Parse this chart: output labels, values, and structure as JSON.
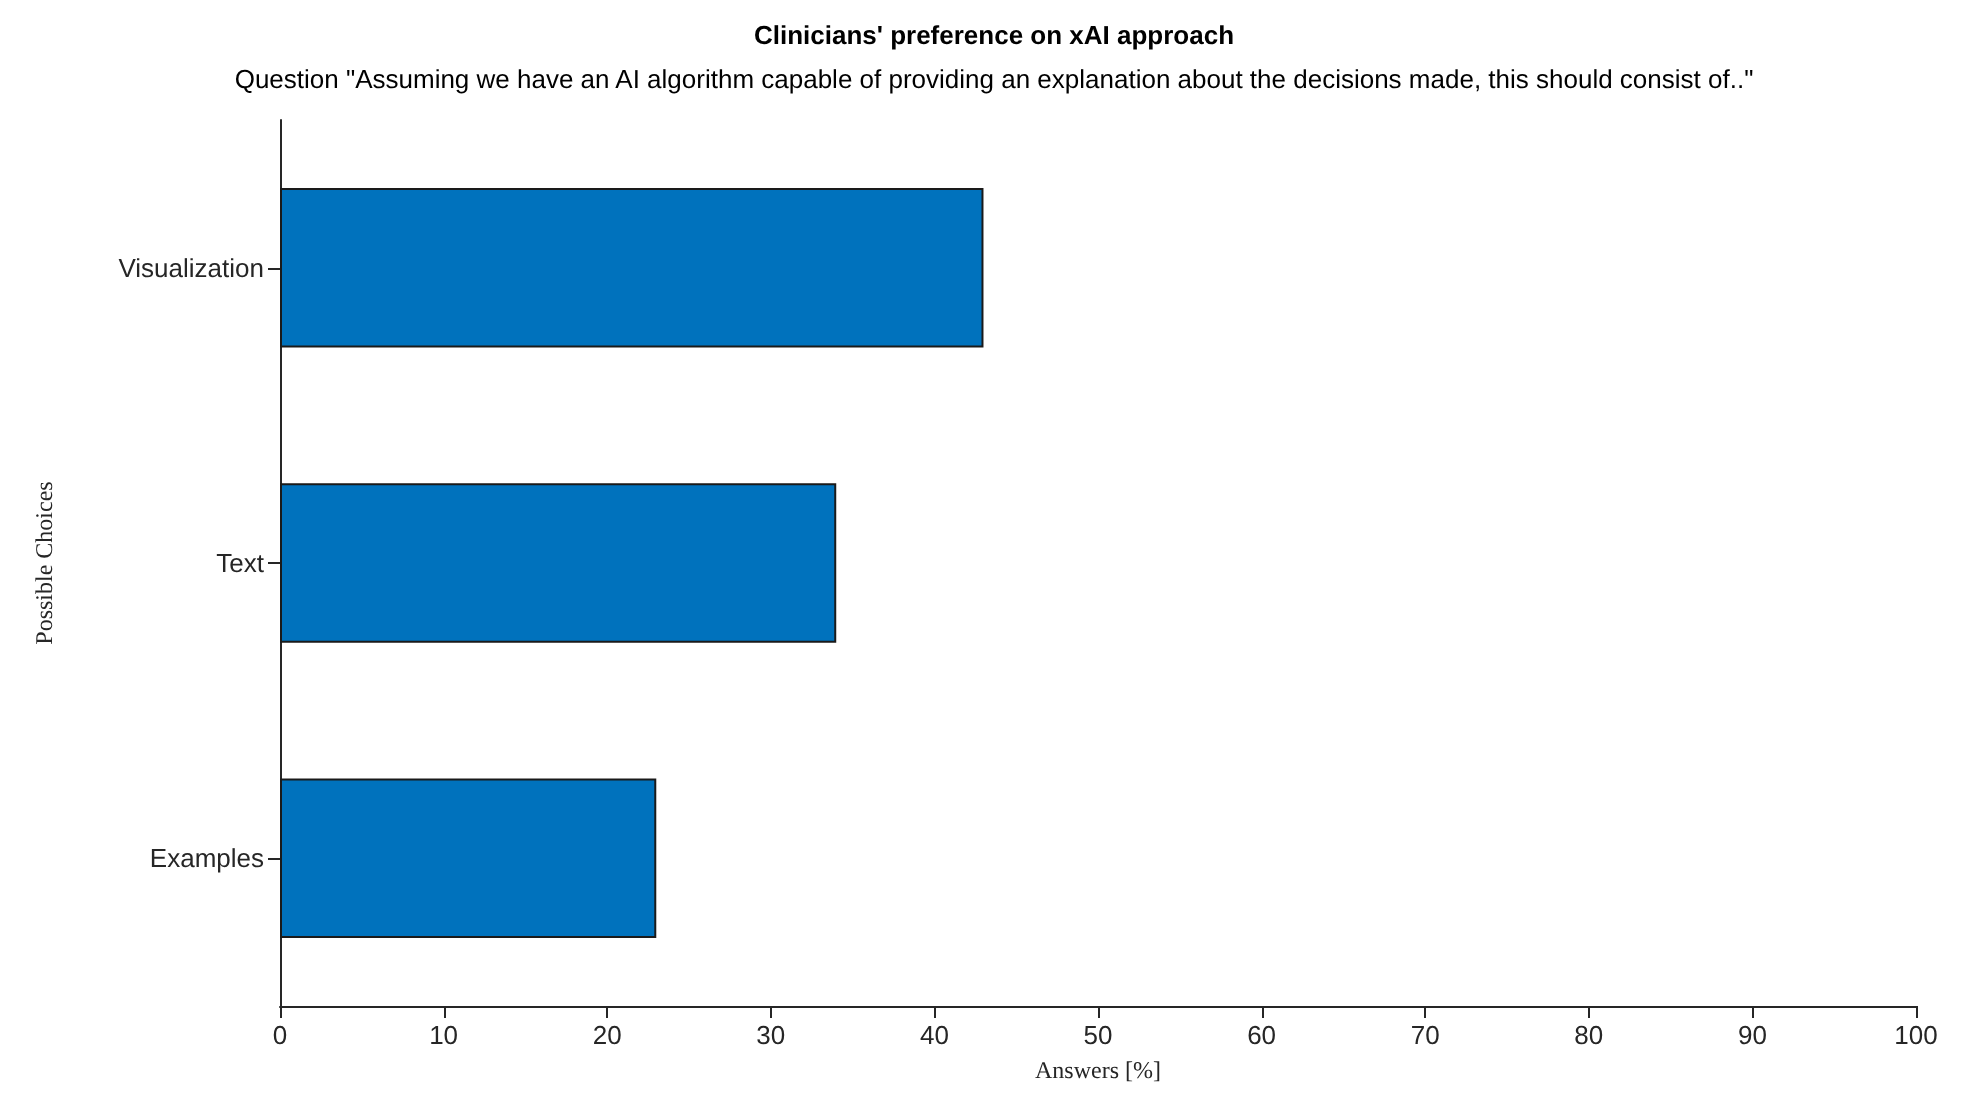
{
  "chart_data": {
    "type": "bar",
    "orientation": "horizontal",
    "title": "Clinicians' preference on xAI approach",
    "subtitle": "Question \"Assuming we have an AI algorithm capable of providing an explanation about the decisions made, this should consist of..\"",
    "xlabel": "Answers [%]",
    "ylabel": "Possible Choices",
    "categories": [
      "Visualization",
      "Text",
      "Examples"
    ],
    "values": [
      43,
      34,
      23
    ],
    "color": "#0072bd",
    "xlim": [
      0,
      100
    ],
    "xticks": [
      0,
      10,
      20,
      30,
      40,
      50,
      60,
      70,
      80,
      90,
      100
    ],
    "grid": false
  }
}
